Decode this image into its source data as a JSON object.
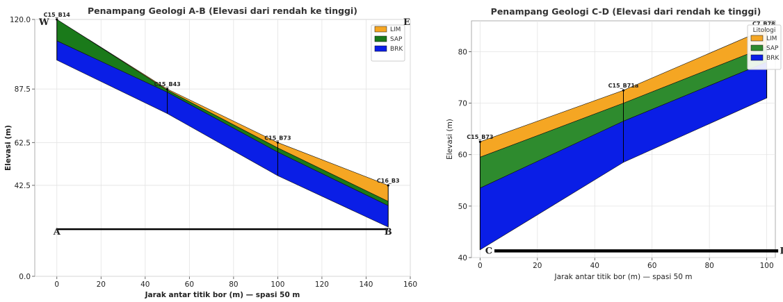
{
  "chart_data": [
    {
      "type": "area",
      "title": "Penampang Geologi A-B (Elevasi dari rendah ke tinggi)",
      "xlabel": "Jarak antar titik bor (m) — spasi 50 m",
      "ylabel": "Elevasi (m)",
      "xlim": [
        -10,
        160
      ],
      "ylim": [
        0,
        120
      ],
      "xticks": [
        "0",
        "20",
        "40",
        "60",
        "80",
        "100",
        "120",
        "140",
        "160"
      ],
      "yticks": [
        "0.0",
        "42.5",
        "62.5",
        "87.5",
        "120.0"
      ],
      "grid": true,
      "legend_position": "top-right",
      "x": [
        0,
        50,
        100,
        150
      ],
      "boreholes": [
        "C15_B14",
        "C15_B43",
        "C15_B73",
        "C16_B3"
      ],
      "series": [
        {
          "name": "LIM",
          "color": "#f5a623",
          "top": [
            120,
            87.5,
            62.5,
            42.5
          ],
          "bottom": [
            120,
            87,
            60,
            35
          ]
        },
        {
          "name": "SAP",
          "color": "#1a7a1a",
          "top": [
            120,
            87,
            60,
            35
          ],
          "bottom": [
            110,
            86,
            58,
            33
          ]
        },
        {
          "name": "BRK",
          "color": "#0a1ee6",
          "top": [
            110,
            86,
            58,
            33
          ],
          "bottom": [
            101,
            76,
            47,
            23
          ]
        }
      ],
      "section_line": {
        "y": 22,
        "x_start": 0,
        "x_end": 150,
        "start_label": "A",
        "end_label": "B"
      },
      "corner_labels": {
        "left": "W",
        "right": "E"
      }
    },
    {
      "type": "area",
      "title": "Penampang Geologi C-D (Elevasi dari rendah ke tinggi)",
      "xlabel": "Jarak antar titik bor (m) — spasi 50 m",
      "ylabel": "Elevasi (m)",
      "xlim": [
        -3,
        103
      ],
      "ylim": [
        40,
        86
      ],
      "xticks": [
        "0",
        "20",
        "40",
        "60",
        "80",
        "100"
      ],
      "yticks": [
        "40",
        "50",
        "60",
        "70",
        "80"
      ],
      "grid": true,
      "legend_title": "Litologi",
      "legend_position": "top-right",
      "x": [
        0,
        50,
        100
      ],
      "boreholes": [
        "C15_B73",
        "C15_B71a",
        "C7_B78"
      ],
      "series": [
        {
          "name": "LIM",
          "color": "#f5a623",
          "top": [
            62.5,
            72.5,
            84.5
          ],
          "bottom": [
            59.5,
            70,
            81
          ]
        },
        {
          "name": "SAP",
          "color": "#2e8b2e",
          "top": [
            59.5,
            70,
            81
          ],
          "bottom": [
            53.5,
            66.5,
            78
          ]
        },
        {
          "name": "BRK",
          "color": "#0a1ee6",
          "top": [
            53.5,
            66.5,
            78
          ],
          "bottom": [
            41.5,
            58.5,
            71
          ]
        }
      ],
      "section_line": {
        "y": 41.3,
        "x_start": 5,
        "x_end": 104,
        "start_label": "C",
        "end_label": "D"
      }
    }
  ]
}
